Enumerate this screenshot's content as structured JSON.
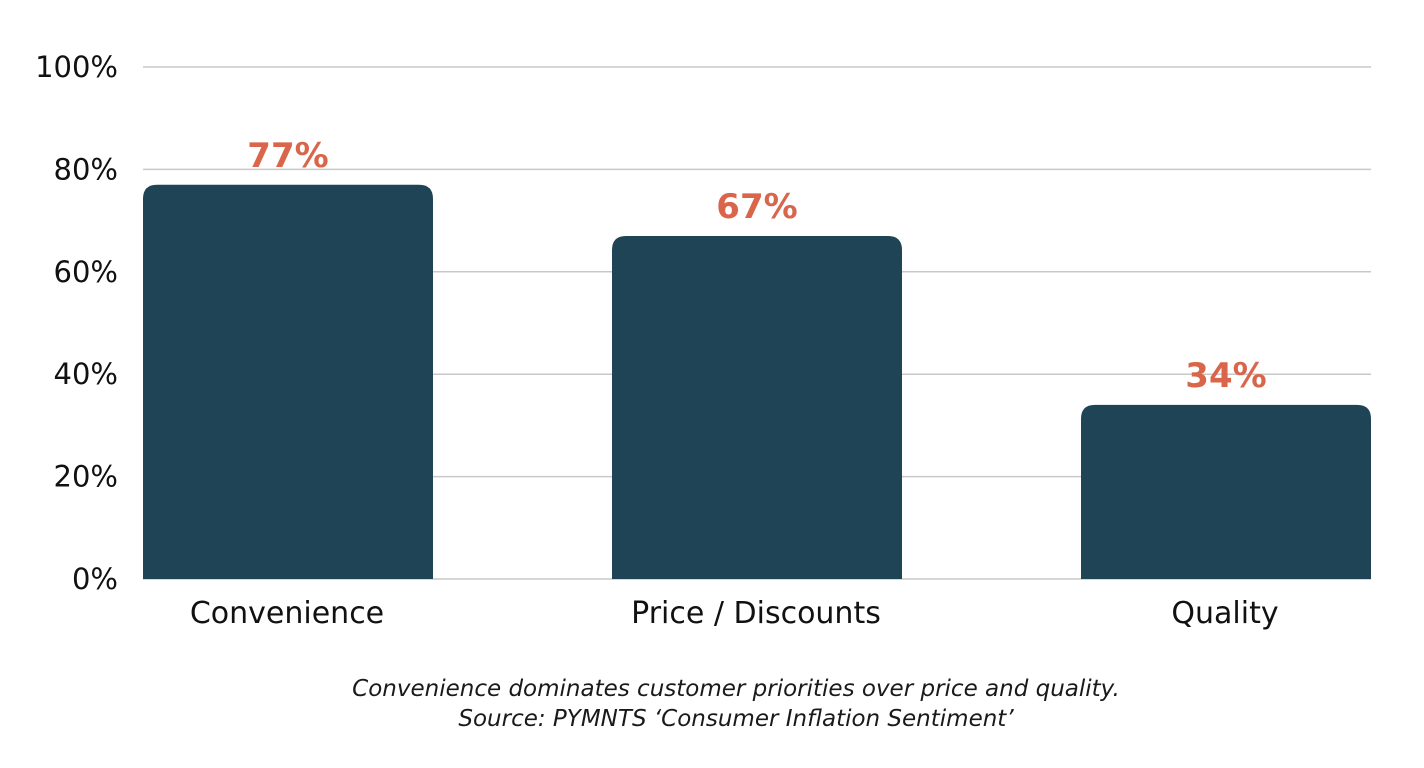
{
  "chart_data": {
    "type": "bar",
    "categories": [
      "Convenience",
      "Price / Discounts",
      "Quality"
    ],
    "values": [
      77,
      67,
      34
    ],
    "data_labels": [
      "77%",
      "67%",
      "34%"
    ],
    "ylim": [
      0,
      100
    ],
    "yticks": [
      0,
      20,
      40,
      60,
      80,
      100
    ],
    "ytick_labels": [
      "0%",
      "20%",
      "40%",
      "60%",
      "80%",
      "100%"
    ],
    "grid": true,
    "bar_color": "#1e4455",
    "label_color": "#d9664a",
    "grid_color": "#c8c8c8"
  },
  "caption": "Convenience dominates customer priorities over price and quality.",
  "source": "Source: PYMNTS ‘Consumer Inflation Sentiment’"
}
